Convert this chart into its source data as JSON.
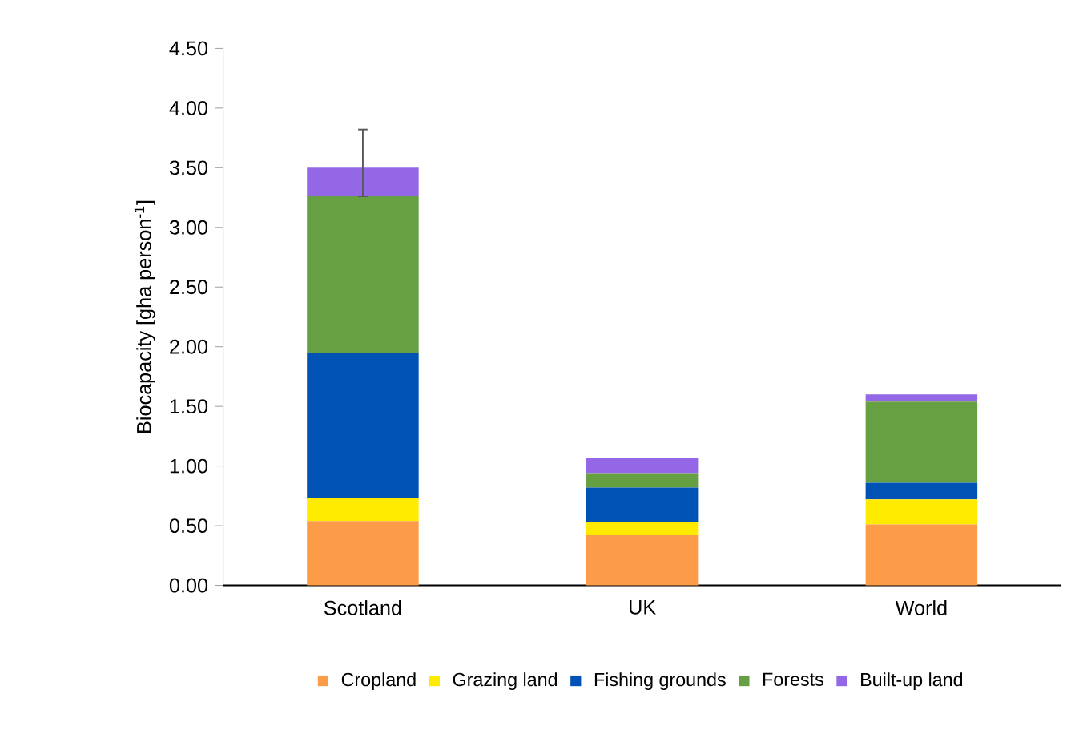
{
  "chart_data": {
    "type": "bar",
    "stacked": true,
    "ylabel": "Biocapacity [gha person$^{-1}$]",
    "categories": [
      "Scotland",
      "UK",
      "World"
    ],
    "series": [
      {
        "name": "Cropland",
        "color": "#fd9c48",
        "values": [
          0.54,
          0.42,
          0.51
        ]
      },
      {
        "name": "Grazing land",
        "color": "#ffeb00",
        "values": [
          0.19,
          0.11,
          0.21
        ]
      },
      {
        "name": "Fishing grounds",
        "color": "#0053b4",
        "values": [
          1.22,
          0.29,
          0.14
        ]
      },
      {
        "name": "Forests",
        "color": "#67a042",
        "values": [
          1.31,
          0.12,
          0.68
        ]
      },
      {
        "name": "Built-up land",
        "color": "#9467e6",
        "values": [
          0.24,
          0.13,
          0.06
        ],
        "errors": [
          [
            3.26,
            3.82
          ],
          null,
          null
        ]
      }
    ],
    "ylim": [
      0,
      4.5
    ],
    "yticks": [
      {
        "value": 0,
        "label": "0.00"
      },
      {
        "value": 0.5,
        "label": "0.50"
      },
      {
        "value": 1,
        "label": "1.00"
      },
      {
        "value": 1.5,
        "label": "1.50"
      },
      {
        "value": 2,
        "label": "2.00"
      },
      {
        "value": 2.5,
        "label": "2.50"
      },
      {
        "value": 3,
        "label": "3.00"
      },
      {
        "value": 3.5,
        "label": "3.50"
      },
      {
        "value": 4,
        "label": "4.00"
      },
      {
        "value": 4.5,
        "label": "4.50"
      }
    ],
    "legend": "bottom",
    "grid": false
  }
}
